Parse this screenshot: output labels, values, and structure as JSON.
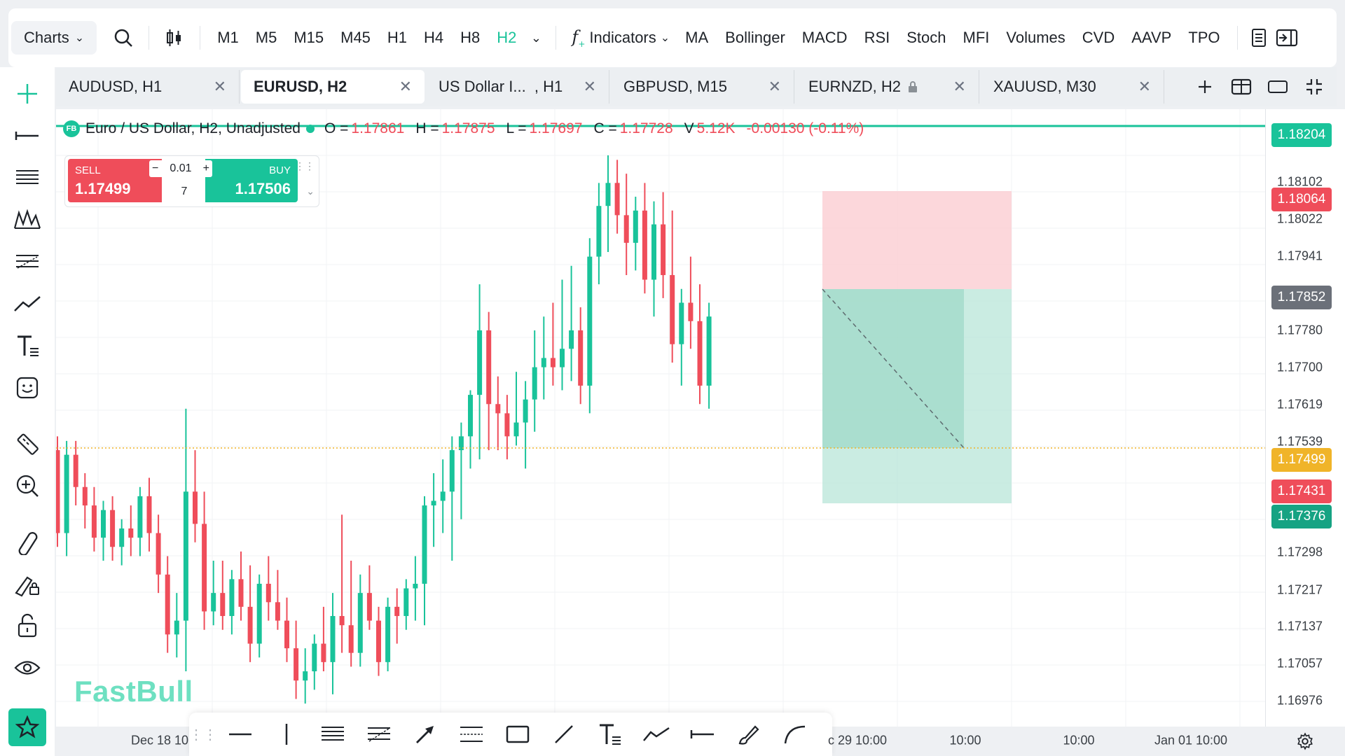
{
  "toolbar": {
    "charts_label": "Charts",
    "timeframes": [
      {
        "label": "M1",
        "active": false
      },
      {
        "label": "M5",
        "active": false
      },
      {
        "label": "M15",
        "active": false
      },
      {
        "label": "M45",
        "active": false
      },
      {
        "label": "H1",
        "active": false
      },
      {
        "label": "H4",
        "active": false
      },
      {
        "label": "H8",
        "active": false
      },
      {
        "label": "H2",
        "active": true
      }
    ],
    "indicators_label": "Indicators",
    "indicator_items": [
      "MA",
      "Bollinger",
      "MACD",
      "RSI",
      "Stoch",
      "MFI",
      "Volumes",
      "CVD",
      "AAVP",
      "TPO"
    ]
  },
  "tabs": [
    {
      "label": "AUDUSD, H1",
      "active": false
    },
    {
      "label": "EURUSD, H2",
      "active": true
    },
    {
      "label": "US Dollar I...  , H1",
      "active": false
    },
    {
      "label": "GBPUSD, M15",
      "active": false
    },
    {
      "label": "EURNZD, H2",
      "active": false
    },
    {
      "label": "XAUUSD, M30",
      "active": false
    }
  ],
  "legend": {
    "source": "FB",
    "title": "Euro / US Dollar, H2, Unadjusted",
    "o_key": "O =",
    "o": "1.17861",
    "h_key": "H =",
    "h": "1.17875",
    "l_key": "L =",
    "l": "1.17697",
    "c_key": "C =",
    "c": "1.17728",
    "v_key": "V",
    "v": "5.12K",
    "change": "-0.00130 (-0.11%)"
  },
  "trade": {
    "sell_label": "SELL",
    "sell_price": "1.17499",
    "buy_label": "BUY",
    "buy_price": "1.17506",
    "quantity": "0.01",
    "spread": "7"
  },
  "price_axis": {
    "labels": [
      "1.18102",
      "1.18022",
      "1.17941",
      "1.17780",
      "1.17700",
      "1.17619",
      "1.17539",
      "1.17298",
      "1.17217",
      "1.17137",
      "1.17057",
      "1.16976"
    ],
    "badges": [
      {
        "text": "1.18204",
        "color": "#19c39a"
      },
      {
        "text": "1.18064",
        "color": "#ef4d5a"
      },
      {
        "text": "1.17852",
        "color": "#6b7079"
      },
      {
        "text": "1.17499",
        "color": "#f0b429"
      },
      {
        "text": "1.17431",
        "color": "#ef4d5a"
      },
      {
        "text": "1.17376",
        "color": "#16a383"
      }
    ]
  },
  "time_axis": {
    "labels": [
      "Dec 18 10",
      "c 29 10:00",
      "10:00",
      "10:00",
      "Jan 01 10:00"
    ]
  },
  "watermark": "FastBull",
  "colors": {
    "accent": "#19c39a",
    "up": "#19c39a",
    "down": "#ef4d5a",
    "current_price_line": "#f0b429"
  },
  "chart_data": {
    "type": "candlestick",
    "symbol": "EURUSD",
    "timeframe": "H2",
    "y_range": [
      1.1692,
      1.1826
    ],
    "last_price": 1.17499,
    "candles": [
      [
        1.1752,
        1.1755,
        1.1731,
        1.1734
      ],
      [
        1.1734,
        1.1754,
        1.1729,
        1.1751
      ],
      [
        1.1751,
        1.1754,
        1.174,
        1.1744
      ],
      [
        1.1744,
        1.1747,
        1.1735,
        1.174
      ],
      [
        1.174,
        1.1744,
        1.173,
        1.1733
      ],
      [
        1.1733,
        1.1741,
        1.1728,
        1.1739
      ],
      [
        1.1739,
        1.1742,
        1.1728,
        1.1731
      ],
      [
        1.1731,
        1.1737,
        1.1727,
        1.1735
      ],
      [
        1.1735,
        1.174,
        1.1729,
        1.1733
      ],
      [
        1.1733,
        1.1744,
        1.1729,
        1.1742
      ],
      [
        1.1742,
        1.1746,
        1.173,
        1.1734
      ],
      [
        1.1734,
        1.1738,
        1.1721,
        1.1725
      ],
      [
        1.1725,
        1.1729,
        1.1708,
        1.1712
      ],
      [
        1.1712,
        1.1721,
        1.1707,
        1.1715
      ],
      [
        1.1715,
        1.1761,
        1.1704,
        1.1743
      ],
      [
        1.1743,
        1.1752,
        1.1732,
        1.1736
      ],
      [
        1.1736,
        1.1743,
        1.1713,
        1.1717
      ],
      [
        1.1717,
        1.1728,
        1.1714,
        1.1721
      ],
      [
        1.1721,
        1.1728,
        1.1713,
        1.1716
      ],
      [
        1.1716,
        1.1726,
        1.1712,
        1.1724
      ],
      [
        1.1724,
        1.173,
        1.1715,
        1.1718
      ],
      [
        1.1718,
        1.1727,
        1.1706,
        1.171
      ],
      [
        1.171,
        1.1725,
        1.1707,
        1.1723
      ],
      [
        1.1723,
        1.1729,
        1.1715,
        1.1719
      ],
      [
        1.1719,
        1.1726,
        1.1713,
        1.1715
      ],
      [
        1.1715,
        1.172,
        1.1706,
        1.1709
      ],
      [
        1.1709,
        1.1715,
        1.1698,
        1.1702
      ],
      [
        1.1702,
        1.1709,
        1.1697,
        1.1704
      ],
      [
        1.1704,
        1.1712,
        1.17,
        1.171
      ],
      [
        1.171,
        1.1718,
        1.1704,
        1.1706
      ],
      [
        1.1706,
        1.1721,
        1.1699,
        1.1716
      ],
      [
        1.1716,
        1.1738,
        1.1708,
        1.1714
      ],
      [
        1.1714,
        1.1728,
        1.1705,
        1.1708
      ],
      [
        1.1708,
        1.1725,
        1.1705,
        1.1721
      ],
      [
        1.1721,
        1.1727,
        1.1713,
        1.1715
      ],
      [
        1.1715,
        1.1718,
        1.1703,
        1.1706
      ],
      [
        1.1706,
        1.172,
        1.1704,
        1.1718
      ],
      [
        1.1718,
        1.1722,
        1.171,
        1.1716
      ],
      [
        1.1716,
        1.1724,
        1.1713,
        1.1722
      ],
      [
        1.1722,
        1.1729,
        1.1715,
        1.1723
      ],
      [
        1.1723,
        1.1742,
        1.1714,
        1.174
      ],
      [
        1.174,
        1.1747,
        1.1731,
        1.1741
      ],
      [
        1.1741,
        1.175,
        1.1734,
        1.1743
      ],
      [
        1.1743,
        1.1755,
        1.1728,
        1.1752
      ],
      [
        1.1752,
        1.1758,
        1.1737,
        1.1755
      ],
      [
        1.1755,
        1.1765,
        1.1748,
        1.1764
      ],
      [
        1.1764,
        1.1788,
        1.175,
        1.1778
      ],
      [
        1.1778,
        1.1782,
        1.1752,
        1.1762
      ],
      [
        1.1762,
        1.1768,
        1.1752,
        1.176
      ],
      [
        1.176,
        1.1764,
        1.175,
        1.1755
      ],
      [
        1.1755,
        1.1769,
        1.1753,
        1.1758
      ],
      [
        1.1758,
        1.1767,
        1.1748,
        1.1763
      ],
      [
        1.1763,
        1.1778,
        1.1756,
        1.177
      ],
      [
        1.177,
        1.1781,
        1.1763,
        1.1772
      ],
      [
        1.1772,
        1.1784,
        1.1766,
        1.177
      ],
      [
        1.177,
        1.1789,
        1.1765,
        1.1774
      ],
      [
        1.1774,
        1.1792,
        1.1767,
        1.1778
      ],
      [
        1.1778,
        1.1783,
        1.1762,
        1.1766
      ],
      [
        1.1766,
        1.1798,
        1.176,
        1.1794
      ],
      [
        1.1794,
        1.181,
        1.1788,
        1.1805
      ],
      [
        1.1805,
        1.1816,
        1.1795,
        1.181
      ],
      [
        1.181,
        1.1815,
        1.1799,
        1.1803
      ],
      [
        1.1803,
        1.1812,
        1.179,
        1.1797
      ],
      [
        1.1797,
        1.1807,
        1.1791,
        1.1804
      ],
      [
        1.1804,
        1.181,
        1.1786,
        1.1789
      ],
      [
        1.1789,
        1.1806,
        1.1781,
        1.1801
      ],
      [
        1.1801,
        1.1808,
        1.1785,
        1.179
      ],
      [
        1.179,
        1.1804,
        1.1771,
        1.1775
      ],
      [
        1.1775,
        1.1787,
        1.1766,
        1.1784
      ],
      [
        1.1784,
        1.1794,
        1.1774,
        1.178
      ],
      [
        1.178,
        1.1788,
        1.1762,
        1.1766
      ],
      [
        1.1766,
        1.1784,
        1.1761,
        1.1781
      ]
    ]
  }
}
